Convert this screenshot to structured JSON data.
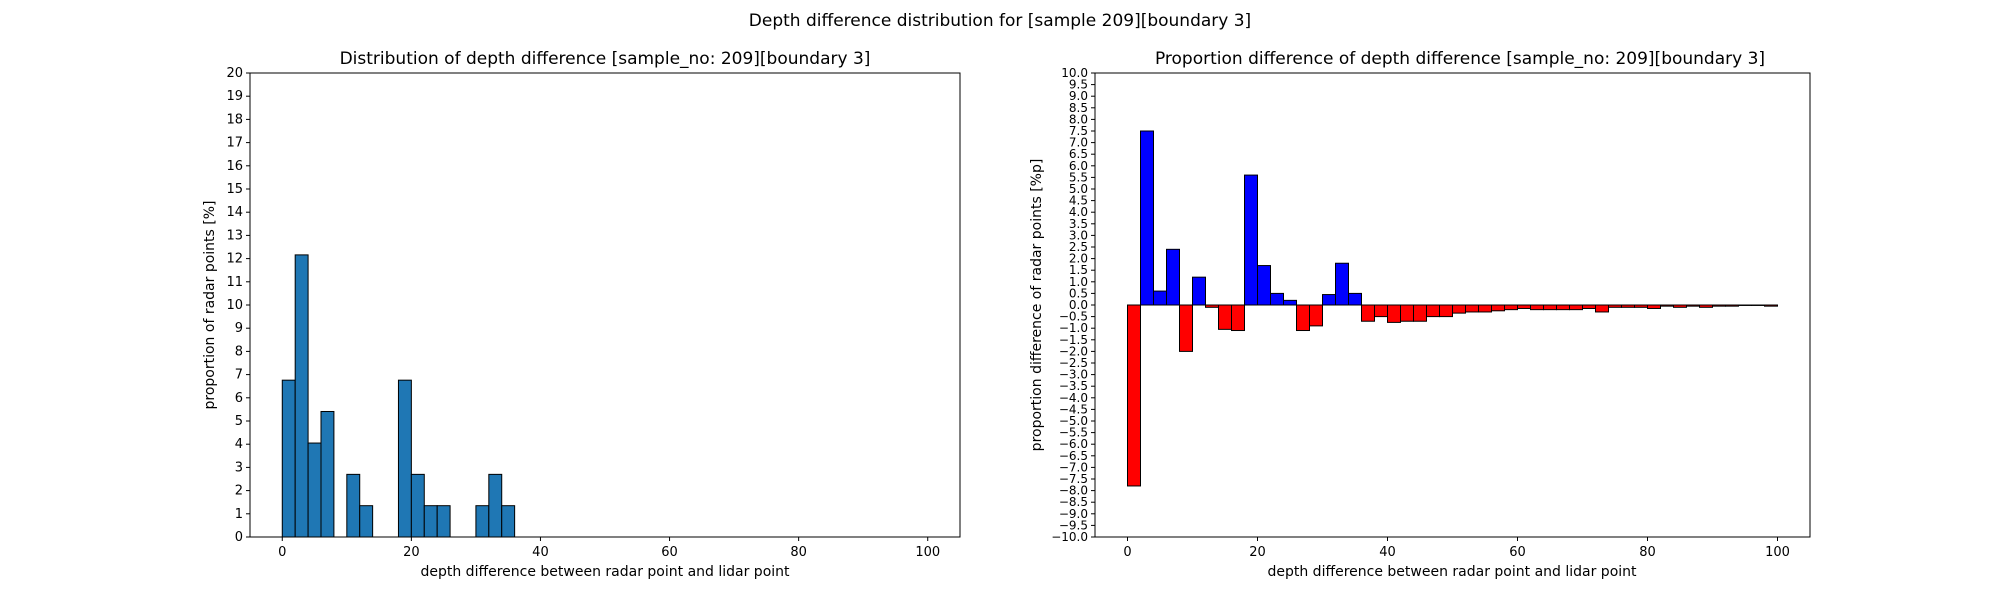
{
  "figure": {
    "suptitle": "Depth difference distribution for [sample 209][boundary 3]"
  },
  "chart_data": [
    {
      "type": "bar",
      "title": "Distribution of depth difference [sample_no: 209][boundary 3]",
      "xlabel": "depth difference between radar point and lidar point",
      "ylabel": "proportion of radar points [%]",
      "xlim": [
        -5,
        105
      ],
      "ylim": [
        0,
        20
      ],
      "xticks": [
        0,
        20,
        40,
        60,
        80,
        100
      ],
      "yticks": [
        0,
        1,
        2,
        3,
        4,
        5,
        6,
        7,
        8,
        9,
        10,
        11,
        12,
        13,
        14,
        15,
        16,
        17,
        18,
        19,
        20
      ],
      "bin_width": 2,
      "bins": [
        0,
        2,
        4,
        6,
        8,
        10,
        12,
        14,
        16,
        18,
        20,
        22,
        24,
        26,
        28,
        30,
        32,
        34
      ],
      "values": [
        6.76,
        12.16,
        4.05,
        5.41,
        0,
        2.7,
        1.35,
        0,
        0,
        6.76,
        2.7,
        1.35,
        1.35,
        0,
        0,
        1.35,
        2.7,
        1.35
      ],
      "bar_color": "#1f77b4",
      "grid": false
    },
    {
      "type": "bar",
      "title": "Proportion difference of depth difference [sample_no: 209][boundary 3]",
      "xlabel": "depth difference between radar point and lidar point",
      "ylabel": "proportion difference of radar points [%p]",
      "xlim": [
        -5,
        105
      ],
      "ylim": [
        -10,
        10
      ],
      "xticks": [
        0,
        20,
        40,
        60,
        80,
        100
      ],
      "ytick_step": 0.5,
      "bin_width": 2,
      "bins": [
        0,
        2,
        4,
        6,
        8,
        10,
        12,
        14,
        16,
        18,
        20,
        22,
        24,
        26,
        28,
        30,
        32,
        34,
        36,
        38,
        40,
        42,
        44,
        46,
        48,
        50,
        52,
        54,
        56,
        58,
        60,
        62,
        64,
        66,
        68,
        70,
        72,
        74,
        76,
        78,
        80,
        82,
        84,
        86,
        88,
        90,
        92,
        94,
        96,
        98
      ],
      "values": [
        -7.8,
        7.5,
        0.6,
        2.4,
        -2.0,
        1.2,
        -0.1,
        -1.05,
        -1.1,
        5.6,
        1.7,
        0.5,
        0.2,
        -1.1,
        -0.9,
        0.45,
        1.8,
        0.5,
        -0.7,
        -0.5,
        -0.75,
        -0.7,
        -0.7,
        -0.5,
        -0.5,
        -0.35,
        -0.3,
        -0.3,
        -0.25,
        -0.2,
        -0.15,
        -0.2,
        -0.2,
        -0.2,
        -0.2,
        -0.15,
        -0.3,
        -0.1,
        -0.1,
        -0.1,
        -0.15,
        -0.05,
        -0.1,
        -0.05,
        -0.1,
        -0.05,
        -0.05,
        -0.02,
        -0.02,
        -0.05
      ],
      "positive_color": "#0000ff",
      "negative_color": "#ff0000",
      "grid": false
    }
  ]
}
